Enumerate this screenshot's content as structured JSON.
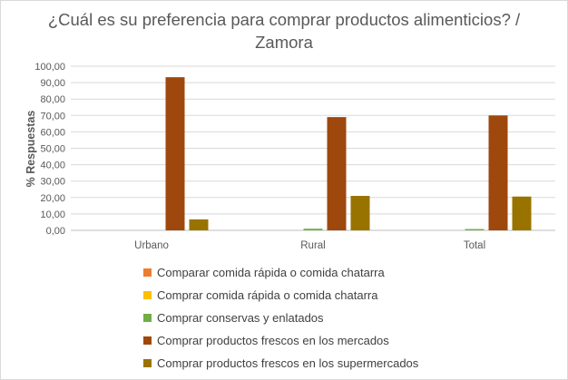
{
  "chart_data": {
    "type": "bar",
    "title": "¿Cuál es su preferencia para comprar productos alimenticios? / Zamora",
    "ylabel": "% Respuestas",
    "xlabel": "",
    "ylim": [
      0,
      100
    ],
    "ytick_step": 10,
    "ytick_labels": [
      "0,00",
      "10,00",
      "20,00",
      "30,00",
      "40,00",
      "50,00",
      "60,00",
      "70,00",
      "80,00",
      "90,00",
      "100,00"
    ],
    "grid": true,
    "legend_position": "bottom",
    "categories": [
      "Urbano",
      "Rural",
      "Total"
    ],
    "series": [
      {
        "name": "Comparar comida rápida o comida chatarra",
        "color": "#ed7d31",
        "values": [
          0,
          0,
          0
        ]
      },
      {
        "name": "Comprar comida rápida o comida chatarra",
        "color": "#ffc000",
        "values": [
          0,
          0,
          0
        ]
      },
      {
        "name": "Comprar conservas y enlatados",
        "color": "#70ad47",
        "values": [
          0,
          1.0,
          0.8
        ]
      },
      {
        "name": "Comprar productos frescos en los mercados",
        "color": "#9e480e",
        "values": [
          93.3,
          69.0,
          70.0
        ]
      },
      {
        "name": "Comprar productos frescos en los supermercados",
        "color": "#997300",
        "values": [
          6.7,
          21.0,
          20.6
        ]
      }
    ]
  }
}
